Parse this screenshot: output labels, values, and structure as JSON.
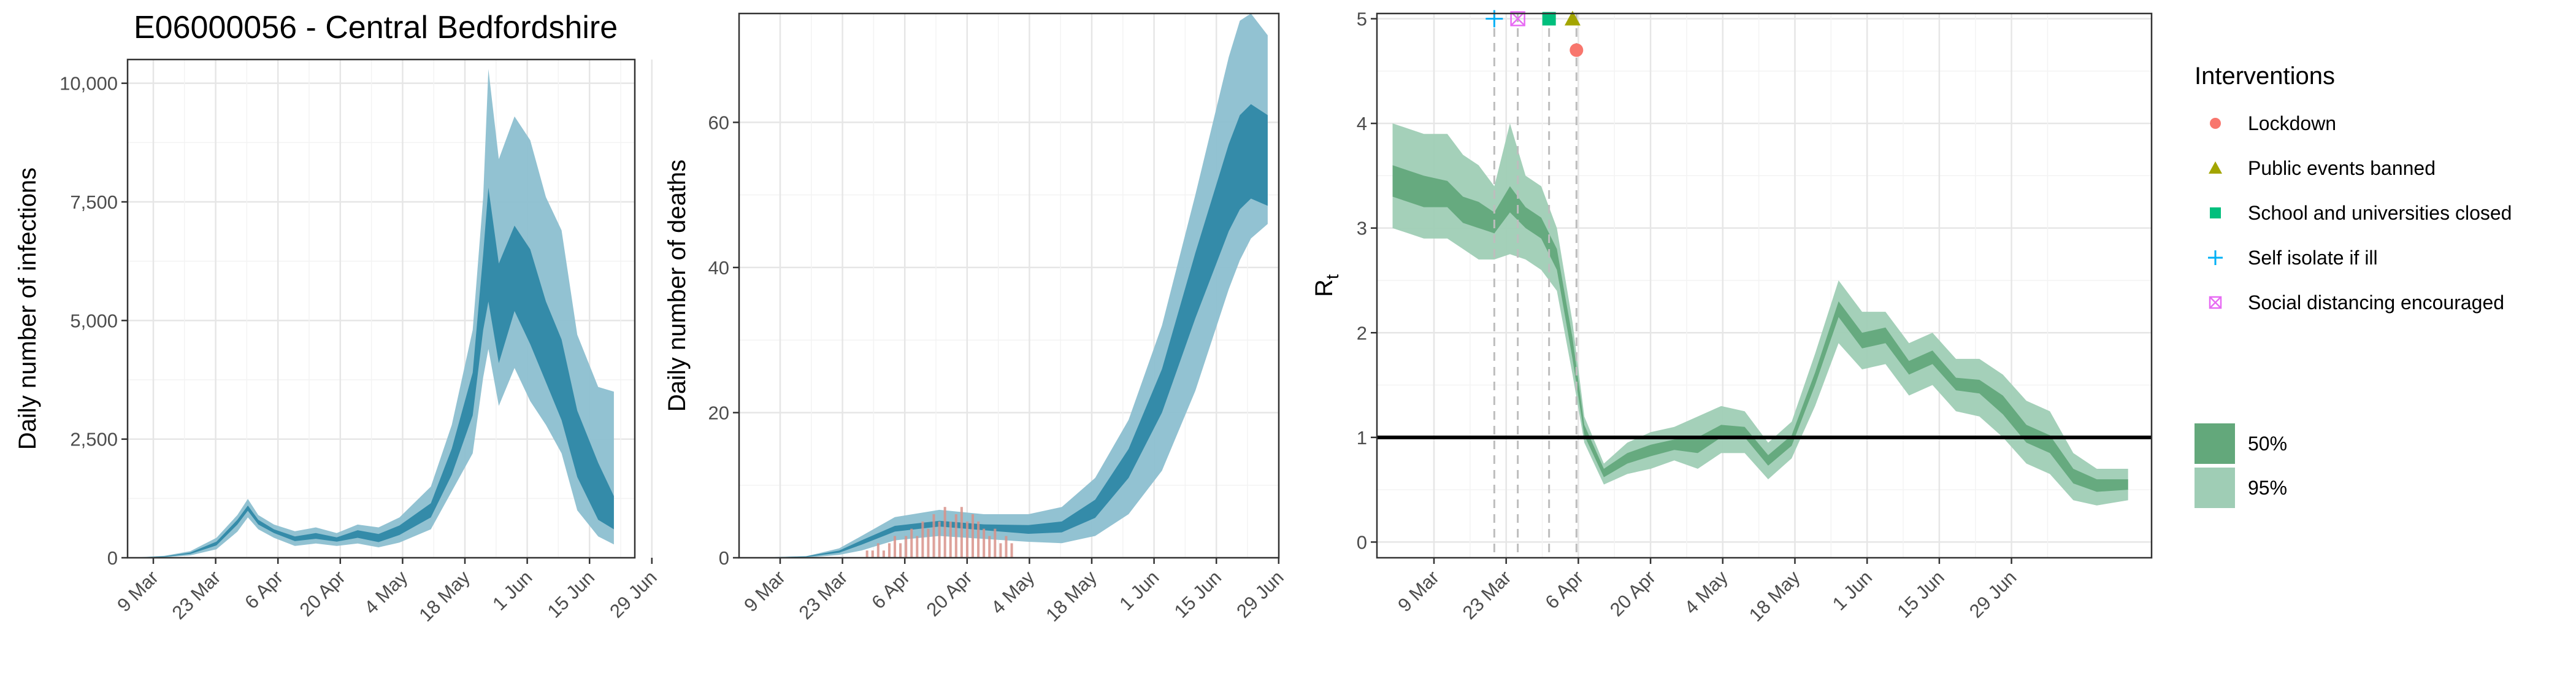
{
  "chart_data": [
    {
      "type": "area",
      "title": "E06000056 - Central Bedfordshire",
      "xlabel": "",
      "ylabel": "Daily number of infections",
      "ylim": [
        0,
        10500
      ],
      "yticks": [
        0,
        2500,
        5000,
        7500,
        10000
      ],
      "ytick_labels": [
        "0",
        "2,500",
        "5,000",
        "7,500",
        "10,000"
      ],
      "xticks": [
        "9 Mar",
        "23 Mar",
        "6 Apr",
        "20 Apr",
        "4 May",
        "18 May",
        "1 Jun",
        "15 Jun",
        "29 Jun"
      ],
      "grid": true,
      "series": [
        {
          "kind": "band_95",
          "color": "#8cbfd0",
          "points": [
            [
              0,
              0,
              10
            ],
            [
              5,
              10,
              40
            ],
            [
              10,
              50,
              140
            ],
            [
              15,
              180,
              420
            ],
            [
              19,
              550,
              900
            ],
            [
              21,
              850,
              1240
            ],
            [
              23,
              600,
              900
            ],
            [
              26,
              420,
              700
            ],
            [
              30,
              250,
              560
            ],
            [
              34,
              300,
              640
            ],
            [
              38,
              250,
              520
            ],
            [
              42,
              300,
              700
            ],
            [
              46,
              220,
              640
            ],
            [
              50,
              320,
              850
            ],
            [
              56,
              600,
              1500
            ],
            [
              60,
              1400,
              2800
            ],
            [
              64,
              2200,
              4800
            ],
            [
              66,
              3800,
              7600
            ],
            [
              67,
              4400,
              10300
            ],
            [
              69,
              3200,
              8400
            ],
            [
              72,
              4000,
              9300
            ],
            [
              75,
              3300,
              8800
            ],
            [
              78,
              2800,
              7600
            ],
            [
              81,
              2200,
              6900
            ],
            [
              84,
              1000,
              4700
            ],
            [
              88,
              450,
              3600
            ],
            [
              91,
              280,
              3500
            ]
          ]
        },
        {
          "kind": "band_50",
          "color": "#2f88a6",
          "points": [
            [
              0,
              2,
              6
            ],
            [
              5,
              18,
              30
            ],
            [
              10,
              80,
              110
            ],
            [
              15,
              260,
              340
            ],
            [
              19,
              700,
              800
            ],
            [
              21,
              990,
              1100
            ],
            [
              23,
              700,
              800
            ],
            [
              26,
              520,
              600
            ],
            [
              30,
              350,
              450
            ],
            [
              34,
              400,
              520
            ],
            [
              38,
              340,
              430
            ],
            [
              42,
              420,
              580
            ],
            [
              46,
              330,
              500
            ],
            [
              50,
              480,
              680
            ],
            [
              56,
              850,
              1150
            ],
            [
              60,
              1750,
              2300
            ],
            [
              64,
              3000,
              3900
            ],
            [
              66,
              4800,
              6400
            ],
            [
              67,
              5400,
              7800
            ],
            [
              69,
              4100,
              6200
            ],
            [
              72,
              5200,
              7000
            ],
            [
              75,
              4500,
              6500
            ],
            [
              78,
              3700,
              5400
            ],
            [
              81,
              2900,
              4600
            ],
            [
              84,
              1700,
              3100
            ],
            [
              88,
              800,
              2000
            ],
            [
              91,
              600,
              1300
            ]
          ]
        }
      ]
    },
    {
      "type": "area",
      "title": "",
      "xlabel": "",
      "ylabel": "Daily number of deaths",
      "ylim": [
        0,
        75
      ],
      "yticks": [
        0,
        20,
        40,
        60
      ],
      "ytick_labels": [
        "0",
        "20",
        "40",
        "60"
      ],
      "xticks": [
        "9 Mar",
        "23 Mar",
        "6 Apr",
        "20 Apr",
        "4 May",
        "18 May",
        "1 Jun",
        "15 Jun",
        "29 Jun"
      ],
      "grid": true,
      "series": [
        {
          "kind": "band_95",
          "color": "#8cbfd0",
          "points": [
            [
              0,
              0,
              0
            ],
            [
              10,
              0,
              0.2
            ],
            [
              16,
              0.4,
              1.3
            ],
            [
              20,
              1,
              3
            ],
            [
              26,
              2.4,
              5.6
            ],
            [
              34,
              3,
              6.6
            ],
            [
              42,
              2.6,
              6
            ],
            [
              50,
              2.2,
              6
            ],
            [
              56,
              2,
              7
            ],
            [
              62,
              3,
              11
            ],
            [
              68,
              6,
              19
            ],
            [
              74,
              12,
              32
            ],
            [
              80,
              23,
              50
            ],
            [
              86,
              37,
              69
            ],
            [
              88,
              41,
              74
            ],
            [
              90,
              44,
              75
            ],
            [
              93,
              46,
              72
            ]
          ]
        },
        {
          "kind": "band_50",
          "color": "#2f88a6",
          "points": [
            [
              0,
              0,
              0
            ],
            [
              10,
              0.1,
              0.2
            ],
            [
              16,
              0.7,
              1
            ],
            [
              20,
              1.8,
              2.4
            ],
            [
              26,
              3.6,
              4.4
            ],
            [
              34,
              4.3,
              5.1
            ],
            [
              42,
              3.8,
              4.6
            ],
            [
              50,
              3.3,
              4.5
            ],
            [
              56,
              3.5,
              5
            ],
            [
              62,
              5.5,
              8
            ],
            [
              68,
              11,
              15
            ],
            [
              74,
              20,
              26
            ],
            [
              80,
              33,
              42
            ],
            [
              86,
              45,
              57
            ],
            [
              88,
              48,
              61
            ],
            [
              90,
              49.5,
              62.5
            ],
            [
              93,
              48.5,
              61
            ]
          ]
        },
        {
          "kind": "bars",
          "color": "#d8928a",
          "values": [
            [
              21,
              1
            ],
            [
              22,
              1
            ],
            [
              23,
              2
            ],
            [
              24,
              1
            ],
            [
              25,
              2
            ],
            [
              26,
              3
            ],
            [
              27,
              2
            ],
            [
              28,
              3
            ],
            [
              29,
              4
            ],
            [
              30,
              3
            ],
            [
              31,
              5
            ],
            [
              32,
              4
            ],
            [
              33,
              6
            ],
            [
              34,
              5
            ],
            [
              35,
              7
            ],
            [
              36,
              5
            ],
            [
              37,
              6
            ],
            [
              38,
              7
            ],
            [
              39,
              5
            ],
            [
              40,
              6
            ],
            [
              41,
              5
            ],
            [
              42,
              4
            ],
            [
              43,
              3
            ],
            [
              44,
              4
            ],
            [
              45,
              2
            ],
            [
              46,
              3
            ],
            [
              47,
              2
            ]
          ]
        }
      ]
    },
    {
      "type": "area",
      "title": "",
      "xlabel": "",
      "ylabel": "R",
      "ylabel_sub": "t",
      "ylim": [
        -0.15,
        5.05
      ],
      "yticks": [
        0,
        1,
        2,
        3,
        4,
        5
      ],
      "ytick_labels": [
        "0",
        "1",
        "2",
        "3",
        "4",
        "5"
      ],
      "xticks": [
        "9 Mar",
        "23 Mar",
        "6 Apr",
        "20 Apr",
        "4 May",
        "18 May",
        "1 Jun",
        "15 Jun",
        "29 Jun"
      ],
      "grid": true,
      "reference_line": 1,
      "intervention_lines": [
        14,
        17,
        21,
        24.5
      ],
      "interventions": [
        {
          "label": "Lockdown",
          "x": 24.5,
          "y": 4.7,
          "color": "#f8766d",
          "shape": "circle"
        },
        {
          "label": "Public events banned",
          "x": 24,
          "y": 5.0,
          "color": "#a3a500",
          "shape": "triangle"
        },
        {
          "label": "School and universities closed",
          "x": 21,
          "y": 5.0,
          "color": "#00bf7d",
          "shape": "square"
        },
        {
          "label": "Self isolate if ill",
          "x": 14,
          "y": 5.0,
          "color": "#00b0f6",
          "shape": "plus"
        },
        {
          "label": "Social distancing encouraged",
          "x": 17,
          "y": 5.0,
          "color": "#e76bf3",
          "shape": "boxx"
        }
      ],
      "series": [
        {
          "kind": "band_95",
          "color": "#9fcdb5",
          "points": [
            [
              1,
              3.0,
              4.0
            ],
            [
              5,
              2.9,
              3.9
            ],
            [
              8,
              2.9,
              3.9
            ],
            [
              10,
              2.8,
              3.7
            ],
            [
              12,
              2.7,
              3.6
            ],
            [
              14,
              2.7,
              3.4
            ],
            [
              16,
              2.75,
              4.0
            ],
            [
              18,
              2.7,
              3.5
            ],
            [
              20,
              2.6,
              3.4
            ],
            [
              22,
              2.4,
              3.0
            ],
            [
              24,
              1.6,
              2.1
            ],
            [
              25.5,
              0.95,
              1.2
            ],
            [
              28,
              0.55,
              0.75
            ],
            [
              31,
              0.65,
              0.95
            ],
            [
              34,
              0.7,
              1.05
            ],
            [
              37,
              0.78,
              1.1
            ],
            [
              40,
              0.7,
              1.2
            ],
            [
              43,
              0.85,
              1.3
            ],
            [
              46,
              0.85,
              1.25
            ],
            [
              49,
              0.6,
              0.95
            ],
            [
              52,
              0.8,
              1.15
            ],
            [
              55,
              1.3,
              1.8
            ],
            [
              58,
              1.9,
              2.5
            ],
            [
              61,
              1.65,
              2.2
            ],
            [
              64,
              1.7,
              2.2
            ],
            [
              67,
              1.4,
              1.9
            ],
            [
              70,
              1.5,
              2.0
            ],
            [
              73,
              1.25,
              1.75
            ],
            [
              76,
              1.2,
              1.75
            ],
            [
              79,
              1.0,
              1.6
            ],
            [
              82,
              0.75,
              1.35
            ],
            [
              85,
              0.65,
              1.25
            ],
            [
              88,
              0.4,
              0.85
            ],
            [
              91,
              0.35,
              0.7
            ],
            [
              95,
              0.4,
              0.7
            ]
          ]
        },
        {
          "kind": "band_50",
          "color": "#63a87b",
          "points": [
            [
              1,
              3.3,
              3.6
            ],
            [
              5,
              3.2,
              3.5
            ],
            [
              8,
              3.2,
              3.45
            ],
            [
              10,
              3.05,
              3.3
            ],
            [
              12,
              3.0,
              3.25
            ],
            [
              14,
              2.95,
              3.15
            ],
            [
              16,
              3.15,
              3.4
            ],
            [
              18,
              3.0,
              3.2
            ],
            [
              20,
              2.9,
              3.1
            ],
            [
              22,
              2.6,
              2.8
            ],
            [
              24,
              1.75,
              1.95
            ],
            [
              25.5,
              1.02,
              1.12
            ],
            [
              28,
              0.62,
              0.7
            ],
            [
              31,
              0.75,
              0.85
            ],
            [
              34,
              0.82,
              0.93
            ],
            [
              37,
              0.88,
              0.98
            ],
            [
              40,
              0.85,
              1.0
            ],
            [
              43,
              1.0,
              1.12
            ],
            [
              46,
              1.0,
              1.1
            ],
            [
              49,
              0.73,
              0.83
            ],
            [
              52,
              0.92,
              1.02
            ],
            [
              55,
              1.5,
              1.62
            ],
            [
              58,
              2.15,
              2.3
            ],
            [
              61,
              1.85,
              2.0
            ],
            [
              64,
              1.9,
              2.05
            ],
            [
              67,
              1.6,
              1.73
            ],
            [
              70,
              1.7,
              1.83
            ],
            [
              73,
              1.45,
              1.57
            ],
            [
              76,
              1.42,
              1.55
            ],
            [
              79,
              1.22,
              1.4
            ],
            [
              82,
              0.95,
              1.12
            ],
            [
              85,
              0.85,
              1.02
            ],
            [
              88,
              0.56,
              0.7
            ],
            [
              91,
              0.48,
              0.6
            ],
            [
              95,
              0.5,
              0.6
            ]
          ]
        }
      ]
    }
  ],
  "legend": {
    "interventions_title": "Interventions",
    "items": [
      {
        "label": "Lockdown",
        "color": "#f8766d",
        "shape": "circle"
      },
      {
        "label": "Public events banned",
        "color": "#a3a500",
        "shape": "triangle"
      },
      {
        "label": "School and universities closed",
        "color": "#00bf7d",
        "shape": "square"
      },
      {
        "label": "Self isolate if ill",
        "color": "#00b0f6",
        "shape": "plus"
      },
      {
        "label": "Social distancing encouraged",
        "color": "#e76bf3",
        "shape": "boxx"
      }
    ],
    "intervals": [
      {
        "label": "50%",
        "color": "#63a87b"
      },
      {
        "label": "95%",
        "color": "#9fcdb5"
      }
    ]
  }
}
